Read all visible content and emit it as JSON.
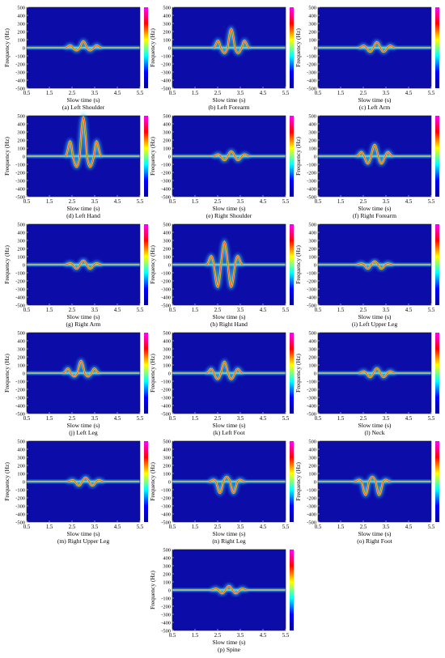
{
  "figure": {
    "chart_data": [
      {
        "type": "heatmap",
        "caption": "(a) Left Shoulder",
        "xlabel": "Slow time (s)",
        "ylabel": "Frequency (Hz)",
        "x_ticks": [
          "0.5",
          "1.5",
          "2.5",
          "3.5",
          "4.5",
          "5.5"
        ],
        "y_ticks": [
          "500",
          "400",
          "300",
          "200",
          "100",
          "0",
          "-100",
          "-200",
          "-300",
          "-400",
          "-500"
        ],
        "xlim": [
          0.5,
          5.5
        ],
        "ylim": [
          -500,
          500
        ],
        "signature": {
          "center_s": 3.0,
          "peak_hz": 80,
          "min_hz": -40
        }
      },
      {
        "type": "heatmap",
        "caption": "(b) Left Forearm",
        "xlabel": "Slow time (s)",
        "ylabel": "Frequency (Hz)",
        "x_ticks": [
          "0.5",
          "1.5",
          "2.5",
          "3.5",
          "4.5",
          "5.5"
        ],
        "y_ticks": [
          "500",
          "400",
          "300",
          "200",
          "100",
          "0",
          "-100",
          "-200",
          "-300",
          "-400",
          "-500"
        ],
        "xlim": [
          0.5,
          5.5
        ],
        "ylim": [
          -500,
          500
        ],
        "signature": {
          "center_s": 3.1,
          "peak_hz": 230,
          "min_hz": -80
        }
      },
      {
        "type": "heatmap",
        "caption": "(c) Left Arm",
        "xlabel": "Slow time (s)",
        "ylabel": "Frequency (Hz)",
        "x_ticks": [
          "0.5",
          "1.5",
          "2.5",
          "3.5",
          "4.5",
          "5.5"
        ],
        "y_ticks": [
          "500",
          "400",
          "300",
          "200",
          "100",
          "0",
          "-100",
          "-200",
          "-300",
          "-400",
          "-500"
        ],
        "xlim": [
          0.5,
          5.5
        ],
        "ylim": [
          -500,
          500
        ],
        "signature": {
          "center_s": 3.1,
          "peak_hz": 70,
          "min_hz": -60
        }
      },
      {
        "type": "heatmap",
        "caption": "(d) Left Hand",
        "xlabel": "Slow time (s)",
        "ylabel": "Frequency (Hz)",
        "x_ticks": [
          "0.5",
          "1.5",
          "2.5",
          "3.5",
          "4.5",
          "5.5"
        ],
        "y_ticks": [
          "500",
          "400",
          "300",
          "200",
          "100",
          "0",
          "-100",
          "-200",
          "-300",
          "-400",
          "-500"
        ],
        "xlim": [
          0.5,
          5.5
        ],
        "ylim": [
          -500,
          500
        ],
        "signature": {
          "center_s": 3.0,
          "peak_hz": 480,
          "min_hz": -160
        }
      },
      {
        "type": "heatmap",
        "caption": "(e) Right Shoulder",
        "xlabel": "Slow time (s)",
        "ylabel": "Frequency (Hz)",
        "x_ticks": [
          "0.5",
          "1.5",
          "2.5",
          "3.5",
          "4.5",
          "5.5"
        ],
        "y_ticks": [
          "500",
          "400",
          "300",
          "200",
          "100",
          "0",
          "-100",
          "-200",
          "-300",
          "-400",
          "-500"
        ],
        "xlim": [
          0.5,
          5.5
        ],
        "ylim": [
          -500,
          500
        ],
        "signature": {
          "center_s": 3.1,
          "peak_hz": 60,
          "min_hz": -60
        }
      },
      {
        "type": "heatmap",
        "caption": "(f) Right Forearm",
        "xlabel": "Slow time (s)",
        "ylabel": "Frequency (Hz)",
        "x_ticks": [
          "0.5",
          "1.5",
          "2.5",
          "3.5",
          "4.5",
          "5.5"
        ],
        "y_ticks": [
          "500",
          "400",
          "300",
          "200",
          "100",
          "0",
          "-100",
          "-200",
          "-300",
          "-400",
          "-500"
        ],
        "xlim": [
          0.5,
          5.5
        ],
        "ylim": [
          -500,
          500
        ],
        "signature": {
          "center_s": 3.0,
          "peak_hz": 140,
          "min_hz": -110
        }
      },
      {
        "type": "heatmap",
        "caption": "(g) Right Arm",
        "xlabel": "Slow time (s)",
        "ylabel": "Frequency (Hz)",
        "x_ticks": [
          "0.5",
          "1.5",
          "2.5",
          "3.5",
          "4.5",
          "5.5"
        ],
        "y_ticks": [
          "500",
          "400",
          "300",
          "200",
          "100",
          "0",
          "-100",
          "-200",
          "-300",
          "-400",
          "-500"
        ],
        "xlim": [
          0.5,
          5.5
        ],
        "ylim": [
          -500,
          500
        ],
        "signature": {
          "center_s": 3.0,
          "peak_hz": 50,
          "min_hz": -60
        }
      },
      {
        "type": "heatmap",
        "caption": "(h) Right Hand",
        "xlabel": "Slow time (s)",
        "ylabel": "Frequency (Hz)",
        "x_ticks": [
          "0.5",
          "1.5",
          "2.5",
          "3.5",
          "4.5",
          "5.5"
        ],
        "y_ticks": [
          "500",
          "400",
          "300",
          "200",
          "100",
          "0",
          "-100",
          "-200",
          "-300",
          "-400",
          "-500"
        ],
        "xlim": [
          0.5,
          5.5
        ],
        "ylim": [
          -500,
          500
        ],
        "signature": {
          "center_s": 2.8,
          "peak_hz": 280,
          "min_hz": -330
        }
      },
      {
        "type": "heatmap",
        "caption": "(i) Left Upper Leg",
        "xlabel": "Slow time (s)",
        "ylabel": "Frequency (Hz)",
        "x_ticks": [
          "0.5",
          "1.5",
          "2.5",
          "3.5",
          "4.5",
          "5.5"
        ],
        "y_ticks": [
          "500",
          "400",
          "300",
          "200",
          "100",
          "0",
          "-100",
          "-200",
          "-300",
          "-400",
          "-500"
        ],
        "xlim": [
          0.5,
          5.5
        ],
        "ylim": [
          -500,
          500
        ],
        "signature": {
          "center_s": 3.0,
          "peak_hz": 40,
          "min_hz": -60
        }
      },
      {
        "type": "heatmap",
        "caption": "(j) Left Leg",
        "xlabel": "Slow time (s)",
        "ylabel": "Frequency (Hz)",
        "x_ticks": [
          "0.5",
          "1.5",
          "2.5",
          "3.5",
          "4.5",
          "5.5"
        ],
        "y_ticks": [
          "500",
          "400",
          "300",
          "200",
          "100",
          "0",
          "-100",
          "-200",
          "-300",
          "-400",
          "-500"
        ],
        "xlim": [
          0.5,
          5.5
        ],
        "ylim": [
          -500,
          500
        ],
        "signature": {
          "center_s": 2.9,
          "peak_hz": 150,
          "min_hz": -50
        }
      },
      {
        "type": "heatmap",
        "caption": "(k) Left Foot",
        "xlabel": "Slow time (s)",
        "ylabel": "Frequency (Hz)",
        "x_ticks": [
          "0.5",
          "1.5",
          "2.5",
          "3.5",
          "4.5",
          "5.5"
        ],
        "y_ticks": [
          "500",
          "400",
          "300",
          "200",
          "100",
          "0",
          "-100",
          "-200",
          "-300",
          "-400",
          "-500"
        ],
        "xlim": [
          0.5,
          5.5
        ],
        "ylim": [
          -500,
          500
        ],
        "signature": {
          "center_s": 2.8,
          "peak_hz": 140,
          "min_hz": -90
        }
      },
      {
        "type": "heatmap",
        "caption": "(l) Neck",
        "xlabel": "Slow time (s)",
        "ylabel": "Frequency (Hz)",
        "x_ticks": [
          "0.5",
          "1.5",
          "2.5",
          "3.5",
          "4.5",
          "5.5"
        ],
        "y_ticks": [
          "500",
          "400",
          "300",
          "200",
          "100",
          "0",
          "-100",
          "-200",
          "-300",
          "-400",
          "-500"
        ],
        "xlim": [
          0.5,
          5.5
        ],
        "ylim": [
          -500,
          500
        ],
        "signature": {
          "center_s": 3.1,
          "peak_hz": 60,
          "min_hz": -60
        }
      },
      {
        "type": "heatmap",
        "caption": "(m) Right Upper Leg",
        "xlabel": "Slow time (s)",
        "ylabel": "Frequency (Hz)",
        "x_ticks": [
          "0.5",
          "1.5",
          "2.5",
          "3.5",
          "4.5",
          "5.5"
        ],
        "y_ticks": [
          "500",
          "400",
          "300",
          "200",
          "100",
          "0",
          "-100",
          "-200",
          "-300",
          "-400",
          "-500"
        ],
        "xlim": [
          0.5,
          5.5
        ],
        "ylim": [
          -500,
          500
        ],
        "signature": {
          "center_s": 3.1,
          "peak_hz": 50,
          "min_hz": -60
        }
      },
      {
        "type": "heatmap",
        "caption": "(n) Right Leg",
        "xlabel": "Slow time (s)",
        "ylabel": "Frequency (Hz)",
        "x_ticks": [
          "0.5",
          "1.5",
          "2.5",
          "3.5",
          "4.5",
          "5.5"
        ],
        "y_ticks": [
          "500",
          "400",
          "300",
          "200",
          "100",
          "0",
          "-100",
          "-200",
          "-300",
          "-400",
          "-500"
        ],
        "xlim": [
          0.5,
          5.5
        ],
        "ylim": [
          -500,
          500
        ],
        "signature": {
          "center_s": 2.9,
          "peak_hz": 60,
          "min_hz": -170
        }
      },
      {
        "type": "heatmap",
        "caption": "(o) Right Foot",
        "xlabel": "Slow time (s)",
        "ylabel": "Frequency (Hz)",
        "x_ticks": [
          "0.5",
          "1.5",
          "2.5",
          "3.5",
          "4.5",
          "5.5"
        ],
        "y_ticks": [
          "500",
          "400",
          "300",
          "200",
          "100",
          "0",
          "-100",
          "-200",
          "-300",
          "-400",
          "-500"
        ],
        "xlim": [
          0.5,
          5.5
        ],
        "ylim": [
          -500,
          500
        ],
        "signature": {
          "center_s": 2.9,
          "peak_hz": 60,
          "min_hz": -200
        }
      },
      {
        "type": "heatmap",
        "caption": "(p) Spine",
        "xlabel": "Slow time (s)",
        "ylabel": "Frequency (Hz)",
        "x_ticks": [
          "0.5",
          "1.5",
          "2.5",
          "3.5",
          "4.5",
          "5.5"
        ],
        "y_ticks": [
          "500",
          "400",
          "300",
          "200",
          "100",
          "0",
          "-100",
          "-200",
          "-300",
          "-400",
          "-500"
        ],
        "xlim": [
          0.5,
          5.5
        ],
        "ylim": [
          -500,
          500
        ],
        "signature": {
          "center_s": 3.0,
          "peak_hz": 50,
          "min_hz": -50
        }
      }
    ],
    "colors": {
      "background": "#0c0ca8",
      "colormap": [
        "#00008f",
        "#0000ff",
        "#00ffff",
        "#ffff00",
        "#ff0000",
        "#ff00ff"
      ]
    }
  }
}
